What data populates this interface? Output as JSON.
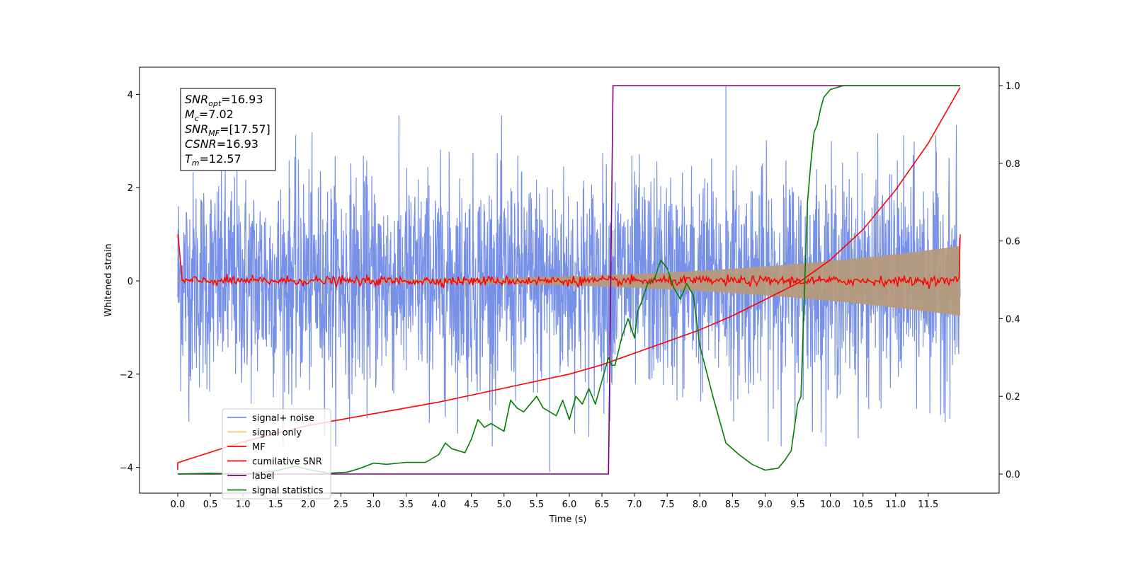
{
  "chart_data": {
    "type": "line",
    "xlabel": "Time (s)",
    "ylabel_left": "Whitened strain",
    "ylabel_right": "",
    "xlim": [
      -0.6,
      12.6
    ],
    "ylim_left": [
      -4.6,
      4.6
    ],
    "ylim_right": [
      -0.05,
      1.05
    ],
    "x_ticks": [
      "0.0",
      "0.5",
      "1.0",
      "1.5",
      "2.0",
      "2.5",
      "3.0",
      "3.5",
      "4.0",
      "4.5",
      "5.0",
      "5.5",
      "6.0",
      "6.5",
      "7.0",
      "7.5",
      "8.0",
      "8.5",
      "9.0",
      "9.5",
      "10.0",
      "10.5",
      "11.0",
      "11.5"
    ],
    "y_ticks_left": [
      "4",
      "2",
      "0",
      "−2",
      "−4"
    ],
    "y_ticks_right": [
      "1.0",
      "0.8",
      "0.6",
      "0.4",
      "0.2",
      "0.0"
    ],
    "grid": false,
    "legend_position": "lower-left",
    "info_box": {
      "lines": [
        {
          "sym": "SNR",
          "sub": "opt",
          "value": "=16.93"
        },
        {
          "sym": "M",
          "sub": "c",
          "value": "=7.02"
        },
        {
          "sym": "SNR",
          "sub": "MF",
          "value": "=[17.57]"
        },
        {
          "sym": "CSNR",
          "sub": "",
          "value": "=16.93"
        },
        {
          "sym": "T",
          "sub": "m",
          "value": "=12.57"
        }
      ]
    },
    "series": [
      {
        "name": "signal+ noise",
        "color": "#7891e8",
        "axis": "left",
        "style": "noise",
        "x_range": [
          0.0,
          11.99
        ],
        "std": 1.15,
        "max": 4.18,
        "min": -4.1
      },
      {
        "name": "signal only",
        "color": "#f5c46e",
        "axis": "left",
        "style": "chirp",
        "x_range": [
          0.0,
          11.99
        ],
        "amplitude_start": 0.02,
        "amplitude_end": 0.75
      },
      {
        "name": "MF",
        "color": "#ff0000",
        "axis": "left",
        "style": "mf",
        "x_range": [
          0.0,
          11.99
        ],
        "start_value": 1.0,
        "end_value": 1.0,
        "noise_std": 0.05
      },
      {
        "name": "cumilative SNR",
        "color": "#ff0000",
        "axis": "left",
        "x": [
          0.0,
          0.0,
          1.0,
          2.0,
          3.0,
          4.0,
          5.0,
          6.0,
          6.5,
          7.0,
          7.5,
          8.0,
          8.5,
          9.0,
          9.5,
          10.0,
          10.5,
          11.0,
          11.5,
          11.99
        ],
        "y": [
          -4.05,
          -3.9,
          -3.45,
          -3.1,
          -2.85,
          -2.6,
          -2.3,
          -2.0,
          -1.8,
          -1.55,
          -1.3,
          -1.05,
          -0.75,
          -0.4,
          -0.05,
          0.45,
          1.1,
          1.95,
          2.95,
          4.15
        ]
      },
      {
        "name": "label",
        "color": "#800080",
        "axis": "right",
        "x": [
          0.0,
          6.6,
          6.67,
          11.99
        ],
        "y": [
          0.0,
          0.0,
          1.0,
          1.0
        ]
      },
      {
        "name": "signal statistics",
        "color": "#008000",
        "axis": "right",
        "x": [
          0.0,
          0.5,
          1.0,
          1.5,
          1.8,
          2.0,
          2.3,
          2.6,
          2.8,
          3.0,
          3.2,
          3.5,
          3.8,
          4.0,
          4.1,
          4.2,
          4.4,
          4.5,
          4.6,
          4.7,
          4.8,
          5.0,
          5.1,
          5.2,
          5.3,
          5.5,
          5.6,
          5.8,
          5.9,
          6.0,
          6.1,
          6.2,
          6.3,
          6.4,
          6.5,
          6.6,
          6.65,
          6.7,
          6.8,
          6.9,
          7.0,
          7.05,
          7.1,
          7.2,
          7.3,
          7.4,
          7.5,
          7.6,
          7.7,
          7.8,
          7.9,
          8.0,
          8.2,
          8.4,
          8.6,
          8.8,
          9.0,
          9.2,
          9.3,
          9.4,
          9.5,
          9.55,
          9.6,
          9.65,
          9.7,
          9.75,
          9.8,
          9.85,
          9.9,
          10.0,
          10.2,
          10.5,
          11.0,
          11.5,
          11.99
        ],
        "y": [
          0.0,
          0.002,
          0.0,
          0.008,
          0.02,
          0.012,
          0.002,
          0.005,
          0.015,
          0.028,
          0.025,
          0.03,
          0.03,
          0.05,
          0.08,
          0.065,
          0.055,
          0.09,
          0.14,
          0.12,
          0.13,
          0.11,
          0.19,
          0.17,
          0.16,
          0.2,
          0.17,
          0.15,
          0.19,
          0.14,
          0.2,
          0.18,
          0.22,
          0.18,
          0.24,
          0.3,
          0.28,
          0.28,
          0.35,
          0.4,
          0.35,
          0.42,
          0.44,
          0.49,
          0.5,
          0.55,
          0.53,
          0.48,
          0.45,
          0.49,
          0.46,
          0.33,
          0.2,
          0.08,
          0.05,
          0.025,
          0.01,
          0.015,
          0.035,
          0.06,
          0.18,
          0.2,
          0.45,
          0.7,
          0.8,
          0.88,
          0.9,
          0.94,
          0.97,
          0.99,
          1.0,
          1.0,
          1.0,
          1.0,
          1.0
        ]
      }
    ]
  }
}
